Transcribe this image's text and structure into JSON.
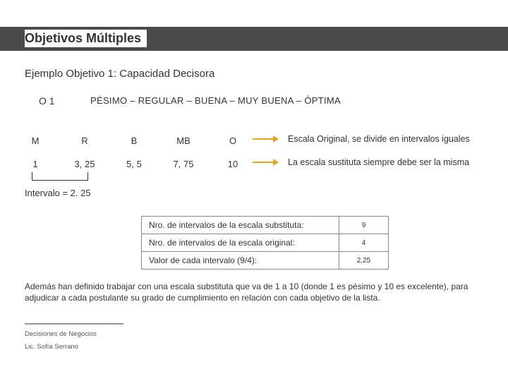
{
  "title": "Objetivos Múltiples",
  "subtitle": "Ejemplo Objetivo 1: Capacidad Decisora",
  "o1": "O 1",
  "pesimo_scale": "PÉSIMO – REGULAR – BUENA – MUY BUENA – ÓPTIMA",
  "labels": {
    "m": "M",
    "r": "R",
    "b": "B",
    "mb": "MB",
    "o": "O"
  },
  "values": {
    "v1": "1",
    "v2": "3, 25",
    "v3": "5, 5",
    "v4": "7, 75",
    "v5": "10"
  },
  "interval": "Intervalo = 2. 25",
  "note1": "Escala Original, se divide en intervalos iguales",
  "note2": "La escala sustituta siempre debe ser la misma",
  "table": {
    "rows": [
      {
        "k": "Nro. de intervalos de la escala substituta:",
        "v": "9"
      },
      {
        "k": "Nro. de intervalos de la escala original:",
        "v": "4"
      },
      {
        "k": "Valor de cada intervalo (9/4):",
        "v": "2,25"
      }
    ]
  },
  "paragraph": "Además han definido trabajar con una escala substituta que va de 1 a 10 (donde 1 es pésimo y 10 es excelente), para adjudicar a cada postulante su grado de cumplimiento en relación con cada objetivo de la lista.",
  "footer1": "Decisiones de Negocios",
  "footer2": "Lic. Sofía Serrano",
  "colors": {
    "title_bar": "#4a4a4a",
    "accent": "#e7a614",
    "text": "#333333",
    "border": "#888888",
    "footer_line": "#999999"
  }
}
